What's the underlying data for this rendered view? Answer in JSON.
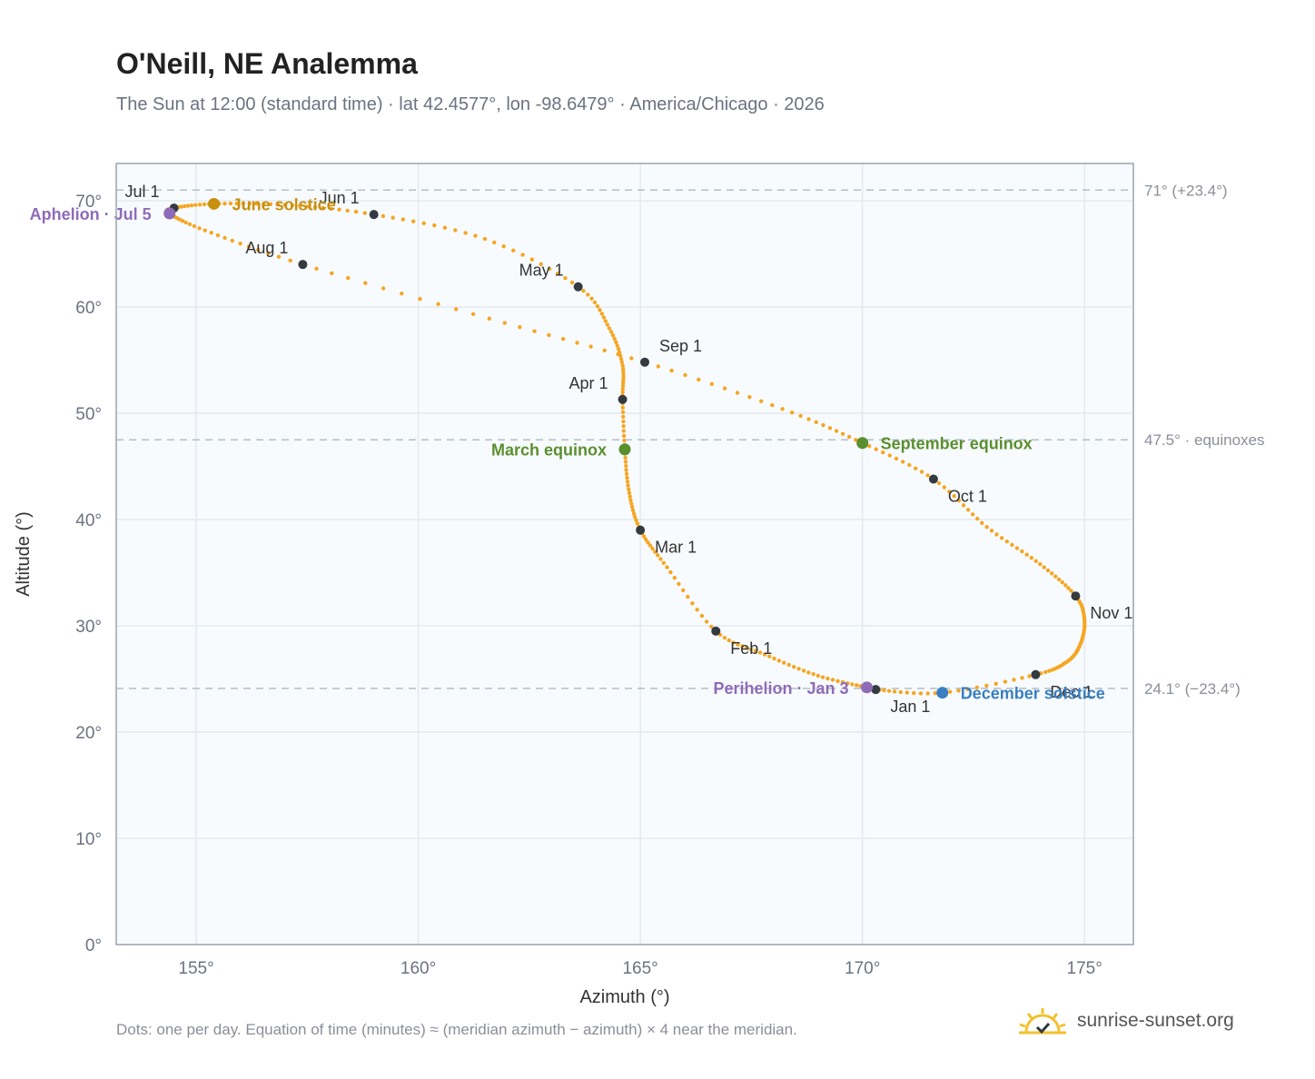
{
  "header": {
    "title": "O'Neill, NE Analemma",
    "subtitle": "The Sun at 12:00 (standard time) · lat 42.4577°, lon -98.6479° · America/Chicago · 2026"
  },
  "footer": {
    "note": "Dots: one per day. Equation of time (minutes) ≈ (meridian azimuth − azimuth) × 4 near the meridian.",
    "brand": "sunrise-sunset.org"
  },
  "colors": {
    "curve": "#f5a623",
    "month_dot": "#333a40",
    "solstice_june": "#c8900f",
    "equinox": "#5a8f2e",
    "solstice_december": "#3a7fc1",
    "apsis": "#8e6bb8",
    "plot_bg": "#f8fbfe",
    "grid": "#e4e9ee",
    "ref_line": "#b4bec8"
  },
  "chart_data": {
    "type": "scatter",
    "title": "O'Neill, NE Analemma",
    "xlabel": "Azimuth (°)",
    "ylabel": "Altitude (°)",
    "xlim": [
      153.2,
      176.1
    ],
    "ylim": [
      0,
      73.5
    ],
    "x_ticks": [
      {
        "v": 155,
        "label": "155°"
      },
      {
        "v": 160,
        "label": "160°"
      },
      {
        "v": 165,
        "label": "165°"
      },
      {
        "v": 170,
        "label": "170°"
      },
      {
        "v": 175,
        "label": "175°"
      }
    ],
    "y_ticks": [
      {
        "v": 0,
        "label": "0°"
      },
      {
        "v": 10,
        "label": "10°"
      },
      {
        "v": 20,
        "label": "20°"
      },
      {
        "v": 30,
        "label": "30°"
      },
      {
        "v": 40,
        "label": "40°"
      },
      {
        "v": 50,
        "label": "50°"
      },
      {
        "v": 60,
        "label": "60°"
      },
      {
        "v": 70,
        "label": "70°"
      }
    ],
    "grid": true,
    "reference_lines": [
      {
        "y": 71.0,
        "label": "71° (+23.4°)"
      },
      {
        "y": 47.5,
        "label": "47.5° · equinoxes"
      },
      {
        "y": 24.1,
        "label": "24.1° (−23.4°)"
      }
    ],
    "path_points": [
      [
        170.3,
        24.0
      ],
      [
        171.8,
        23.7
      ],
      [
        173.9,
        25.4
      ],
      [
        174.6,
        26.6
      ],
      [
        174.9,
        28.2
      ],
      [
        175.0,
        30.5
      ],
      [
        174.8,
        32.8
      ],
      [
        174.0,
        35.8
      ],
      [
        172.8,
        39.3
      ],
      [
        171.6,
        43.8
      ],
      [
        170.0,
        47.2
      ],
      [
        168.2,
        50.4
      ],
      [
        165.1,
        54.8
      ],
      [
        161.6,
        58.9
      ],
      [
        157.4,
        64.0
      ],
      [
        155.2,
        67.2
      ],
      [
        154.4,
        68.8
      ],
      [
        154.5,
        69.3
      ],
      [
        155.4,
        69.7
      ],
      [
        157.0,
        69.6
      ],
      [
        159.0,
        68.7
      ],
      [
        161.5,
        66.4
      ],
      [
        163.6,
        61.9
      ],
      [
        164.3,
        58.0
      ],
      [
        164.6,
        54.5
      ],
      [
        164.6,
        51.3
      ],
      [
        164.65,
        46.6
      ],
      [
        164.75,
        42.5
      ],
      [
        165.0,
        39.0
      ],
      [
        165.6,
        35.5
      ],
      [
        166.7,
        29.5
      ],
      [
        167.8,
        27.3
      ],
      [
        169.0,
        25.3
      ],
      [
        170.1,
        24.2
      ],
      [
        170.3,
        24.0
      ]
    ],
    "months": [
      {
        "label": "Jan 1",
        "x": 170.3,
        "y": 24.0,
        "pos": "below-right"
      },
      {
        "label": "Feb 1",
        "x": 166.7,
        "y": 29.5,
        "pos": "below-right"
      },
      {
        "label": "Mar 1",
        "x": 165.0,
        "y": 39.0,
        "pos": "below-right"
      },
      {
        "label": "Apr 1",
        "x": 164.6,
        "y": 51.3,
        "pos": "above-left"
      },
      {
        "label": "May 1",
        "x": 163.6,
        "y": 61.9,
        "pos": "above-left"
      },
      {
        "label": "Jun 1",
        "x": 159.0,
        "y": 68.7,
        "pos": "above-left"
      },
      {
        "label": "Jul 1",
        "x": 154.5,
        "y": 69.3,
        "pos": "above-left"
      },
      {
        "label": "Aug 1",
        "x": 157.4,
        "y": 64.0,
        "pos": "above-left"
      },
      {
        "label": "Sep 1",
        "x": 165.1,
        "y": 54.8,
        "pos": "above-right"
      },
      {
        "label": "Oct 1",
        "x": 171.6,
        "y": 43.8,
        "pos": "below-right"
      },
      {
        "label": "Nov 1",
        "x": 174.8,
        "y": 32.8,
        "pos": "below-right"
      },
      {
        "label": "Dec 1",
        "x": 173.9,
        "y": 25.4,
        "pos": "below-right"
      }
    ],
    "events": [
      {
        "label": "June solstice",
        "x": 155.4,
        "y": 69.7,
        "color": "#c8900f",
        "pos": "right"
      },
      {
        "label": "Aphelion · Jul 5",
        "x": 154.4,
        "y": 68.8,
        "color": "#8e6bb8",
        "pos": "left"
      },
      {
        "label": "March equinox",
        "x": 164.65,
        "y": 46.6,
        "color": "#5a8f2e",
        "pos": "left"
      },
      {
        "label": "September equinox",
        "x": 170.0,
        "y": 47.2,
        "color": "#5a8f2e",
        "pos": "right"
      },
      {
        "label": "Perihelion · Jan 3",
        "x": 170.1,
        "y": 24.2,
        "color": "#8e6bb8",
        "pos": "left"
      },
      {
        "label": "December solstice",
        "x": 171.8,
        "y": 23.7,
        "color": "#3a7fc1",
        "pos": "right"
      }
    ]
  }
}
